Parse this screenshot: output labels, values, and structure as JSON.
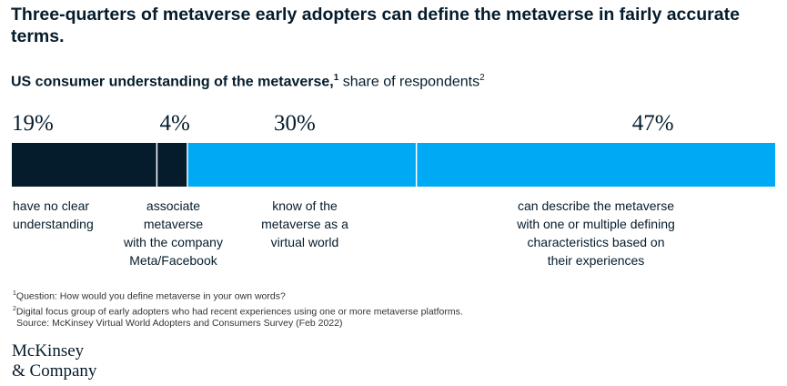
{
  "title": "Three-quarters of metaverse early adopters can define the metaverse in fairly accurate terms.",
  "subtitle": {
    "bold": "US consumer understanding of the metaverse,",
    "bold_sup": "1",
    "rest": " share of respondents",
    "rest_sup": "2"
  },
  "chart_data": {
    "type": "bar",
    "orientation": "horizontal-stacked",
    "title": "US consumer understanding of the metaverse, share of respondents",
    "unit": "%",
    "series": [
      {
        "name": "have no clear understanding",
        "value": 19,
        "label": "19%",
        "color": "#051c2c"
      },
      {
        "name": "associate metaverse with the company Meta/Facebook",
        "value": 4,
        "label": "4%",
        "color": "#051c2c"
      },
      {
        "name": "know of the metaverse as a virtual world",
        "value": 30,
        "label": "30%",
        "color": "#00a9f4"
      },
      {
        "name": "can describe the metaverse with one or multiple defining characteristics based on their experiences",
        "value": 47,
        "label": "47%",
        "color": "#00a9f4"
      }
    ],
    "total": 100
  },
  "categories": [
    {
      "lines": [
        "have no clear",
        "understanding"
      ]
    },
    {
      "lines": [
        "associate",
        "metaverse",
        "with the company",
        "Meta/Facebook"
      ]
    },
    {
      "lines": [
        "know of the",
        "metaverse as a",
        "virtual world"
      ]
    },
    {
      "lines": [
        "can describe the metaverse",
        "with one or multiple defining",
        "characteristics based on",
        "their experiences"
      ]
    }
  ],
  "notes": {
    "note1_sup": "1",
    "note1": "Question: How would you define metaverse in your own words?",
    "note2_sup": "2",
    "note2": "Digital focus group of early adopters who had recent experiences using one or more metaverse platforms.",
    "source": "Source: McKinsey Virtual World Adopters and Consumers Survey (Feb 2022)"
  },
  "logo": {
    "line1": "McKinsey",
    "line2": "& Company"
  }
}
